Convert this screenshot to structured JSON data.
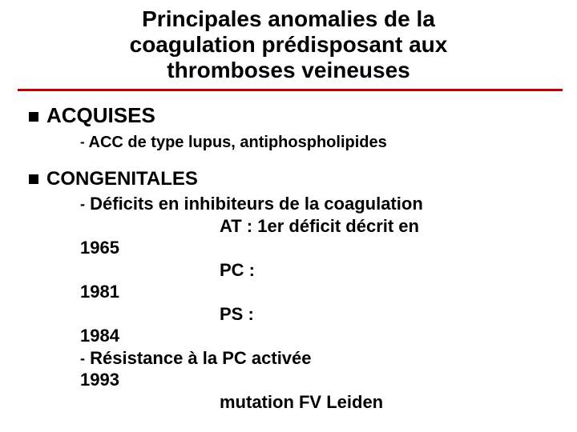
{
  "title_line1": "Principales anomalies de la",
  "title_line2": "coagulation prédisposant aux",
  "title_line3": "thromboses veineuses",
  "rule_color": "#c00000",
  "sections": {
    "acquises": {
      "heading": "ACQUISES",
      "item": "ACC de type lupus, antiphospholipides"
    },
    "congenitales": {
      "heading": "CONGENITALES",
      "deficit_label": "Déficits en inhibiteurs de la coagulation",
      "at_line": "AT : 1er déficit décrit en",
      "at_year": "1965",
      "pc_label": "PC :",
      "pc_year": "1981",
      "ps_label": "PS :",
      "ps_year": "1984",
      "resist": "Résistance à la PC activée",
      "resist_year": "1993",
      "mutation": "mutation FV Leiden"
    }
  },
  "bullet": "■",
  "dash": "-"
}
